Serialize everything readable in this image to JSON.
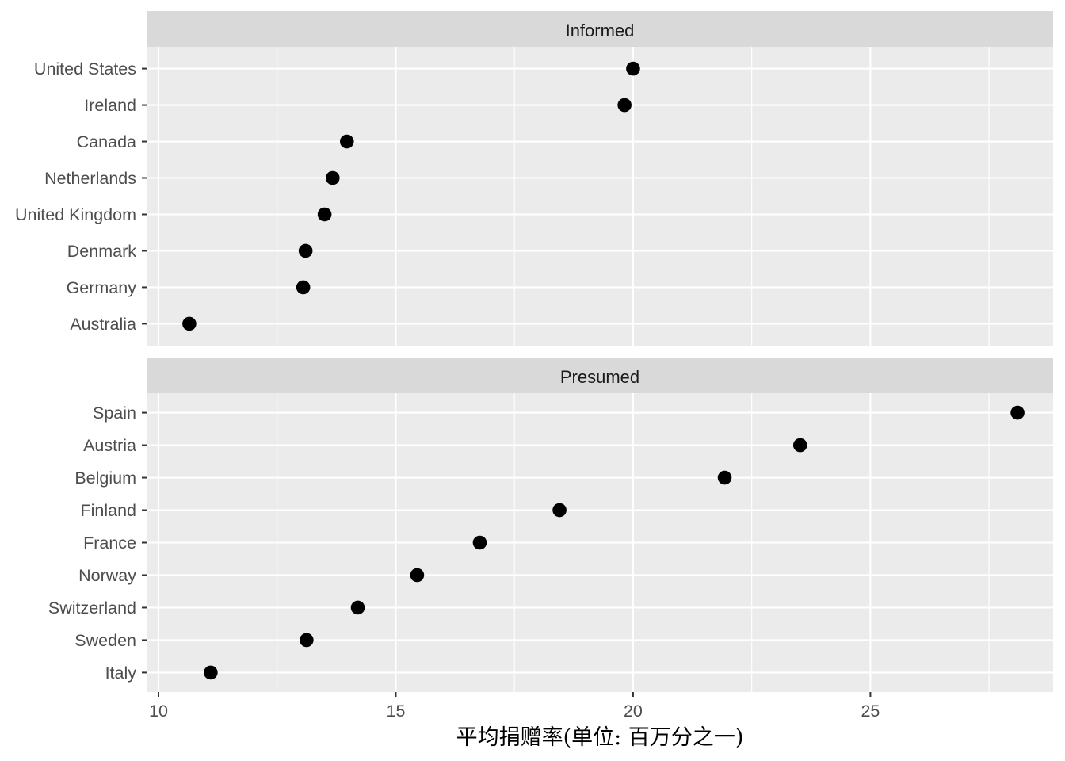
{
  "chart_data": {
    "type": "scatter",
    "xlabel": "平均捐赠率(单位: 百万分之一)",
    "ylabel": "",
    "xlim": [
      9.75,
      28.85
    ],
    "x_ticks": [
      10,
      15,
      20,
      25
    ],
    "x_tick_labels": [
      "10",
      "15",
      "20",
      "25"
    ],
    "grid": true,
    "legend": "none",
    "colors": {
      "panel_bg": "#ebebeb",
      "strip_bg": "#d9d9d9",
      "grid": "#ffffff",
      "point": "#000000",
      "tick_text": "#4d4d4d"
    },
    "facets": [
      {
        "label": "Informed",
        "countries": [
          "Australia",
          "Germany",
          "Denmark",
          "United Kingdom",
          "Netherlands",
          "Canada",
          "Ireland",
          "United States"
        ],
        "values": [
          10.65,
          13.05,
          13.1,
          13.5,
          13.67,
          13.97,
          19.82,
          20.0
        ]
      },
      {
        "label": "Presumed",
        "countries": [
          "Italy",
          "Sweden",
          "Switzerland",
          "Norway",
          "France",
          "Finland",
          "Belgium",
          "Austria",
          "Spain"
        ],
        "values": [
          11.1,
          13.12,
          14.2,
          15.45,
          16.77,
          18.45,
          21.93,
          23.52,
          28.1
        ]
      }
    ]
  }
}
